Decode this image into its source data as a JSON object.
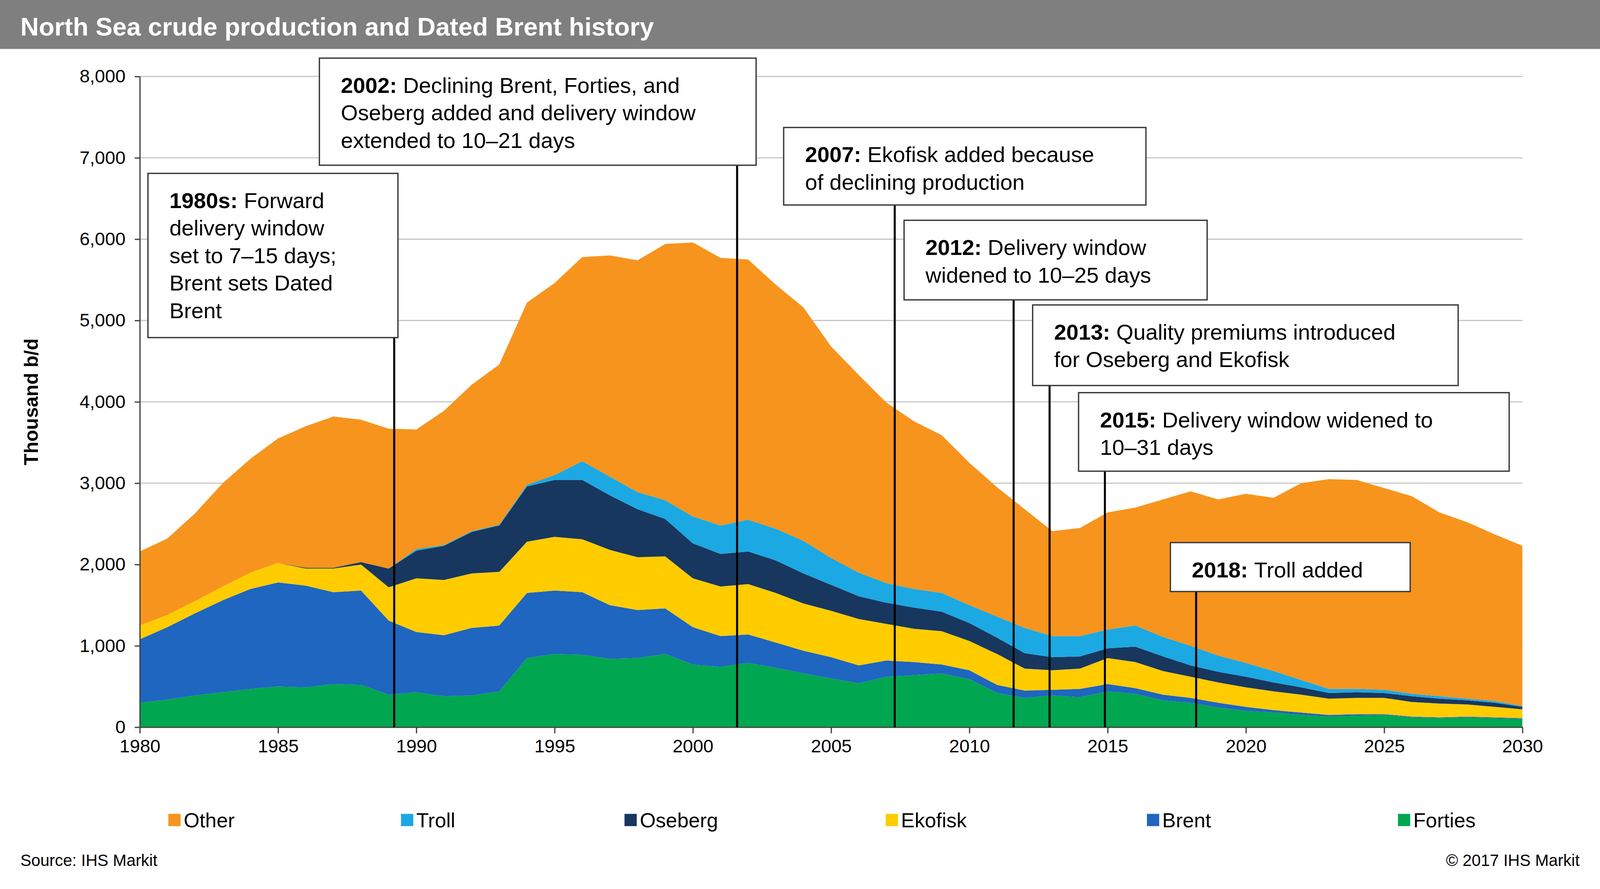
{
  "chart_data": {
    "type": "area",
    "stacked": true,
    "title": "North Sea crude production and Dated Brent history",
    "y_label": "Thousand b/d",
    "x": [
      1980,
      1981,
      1982,
      1983,
      1984,
      1985,
      1986,
      1987,
      1988,
      1989,
      1990,
      1991,
      1992,
      1993,
      1994,
      1995,
      1996,
      1997,
      1998,
      1999,
      2000,
      2001,
      2002,
      2003,
      2004,
      2005,
      2006,
      2007,
      2008,
      2009,
      2010,
      2011,
      2012,
      2013,
      2014,
      2015,
      2016,
      2017,
      2018,
      2019,
      2020,
      2021,
      2022,
      2023,
      2024,
      2025,
      2026,
      2027,
      2028,
      2029,
      2030
    ],
    "xlim": [
      1980,
      2030
    ],
    "xticks": [
      1980,
      1985,
      1990,
      1995,
      2000,
      2005,
      2010,
      2015,
      2020,
      2025,
      2030
    ],
    "ylim": [
      0,
      8000
    ],
    "yticks": [
      0,
      {
        "value": 1000,
        "label": "1,000"
      },
      {
        "value": 2000,
        "label": "2,000"
      },
      {
        "value": 3000,
        "label": "3,000"
      },
      {
        "value": 4000,
        "label": "4,000"
      },
      {
        "value": 5000,
        "label": "5,000"
      },
      {
        "value": 6000,
        "label": "6,000"
      },
      {
        "value": 7000,
        "label": "7,000"
      },
      {
        "value": 8000,
        "label": "8,000"
      }
    ],
    "grid": true,
    "legend": "bottom",
    "series": [
      {
        "name": "Other",
        "color": "#f7941d",
        "values": [
          910,
          940,
          1080,
          1270,
          1400,
          1530,
          1740,
          1860,
          1750,
          1720,
          1470,
          1650,
          1800,
          1970,
          2240,
          2360,
          2510,
          2720,
          2850,
          3150,
          3370,
          3290,
          3200,
          3000,
          2870,
          2600,
          2430,
          2220,
          2060,
          1940,
          1750,
          1590,
          1460,
          1290,
          1330,
          1440,
          1450,
          1690,
          1900,
          1920,
          2080,
          2130,
          2420,
          2580,
          2570,
          2480,
          2430,
          2260,
          2170,
          2050,
          1970
        ]
      },
      {
        "name": "Troll",
        "color": "#1ca8e3",
        "values": [
          0,
          0,
          0,
          0,
          0,
          0,
          0,
          0,
          0,
          0,
          20,
          10,
          10,
          10,
          20,
          60,
          230,
          230,
          210,
          230,
          330,
          350,
          390,
          390,
          400,
          330,
          290,
          240,
          230,
          230,
          220,
          260,
          310,
          260,
          250,
          230,
          260,
          240,
          240,
          200,
          170,
          140,
          90,
          50,
          40,
          40,
          30,
          30,
          20,
          20,
          10
        ]
      },
      {
        "name": "Oseberg",
        "color": "#17375e",
        "values": [
          0,
          0,
          0,
          0,
          0,
          0,
          10,
          10,
          30,
          230,
          340,
          420,
          510,
          570,
          680,
          700,
          730,
          670,
          590,
          460,
          430,
          400,
          400,
          400,
          370,
          320,
          280,
          260,
          260,
          240,
          220,
          200,
          190,
          160,
          150,
          120,
          190,
          180,
          140,
          130,
          130,
          110,
          90,
          70,
          70,
          60,
          70,
          60,
          50,
          50,
          30
        ]
      },
      {
        "name": "Ekofisk",
        "color": "#ffcc00",
        "values": [
          170,
          150,
          150,
          170,
          200,
          240,
          210,
          290,
          320,
          410,
          660,
          680,
          670,
          660,
          630,
          660,
          650,
          680,
          650,
          640,
          600,
          610,
          620,
          610,
          580,
          570,
          570,
          450,
          410,
          410,
          360,
          380,
          270,
          240,
          250,
          320,
          320,
          290,
          260,
          250,
          240,
          230,
          220,
          200,
          200,
          200,
          180,
          170,
          150,
          130,
          110
        ]
      },
      {
        "name": "Brent",
        "color": "#1e66bf",
        "values": [
          780,
          890,
          1010,
          1130,
          1230,
          1280,
          1250,
          1130,
          1160,
          910,
          740,
          750,
          830,
          810,
          800,
          780,
          770,
          660,
          590,
          560,
          460,
          380,
          350,
          310,
          280,
          260,
          220,
          200,
          160,
          110,
          110,
          100,
          90,
          70,
          100,
          90,
          70,
          70,
          60,
          60,
          50,
          30,
          30,
          20,
          20,
          10,
          10,
          10,
          10,
          10,
          10
        ]
      },
      {
        "name": "Forties",
        "color": "#00a650",
        "values": [
          300,
          340,
          390,
          430,
          470,
          500,
          490,
          530,
          520,
          400,
          430,
          380,
          390,
          440,
          850,
          900,
          890,
          840,
          850,
          900,
          770,
          740,
          790,
          730,
          660,
          600,
          540,
          620,
          640,
          660,
          590,
          420,
          360,
          390,
          370,
          440,
          410,
          330,
          300,
          240,
          200,
          180,
          150,
          130,
          140,
          150,
          120,
          110,
          120,
          110,
          100
        ]
      }
    ],
    "annotations": [
      {
        "label": "1980s:",
        "lines": [
          "Forward",
          "delivery window",
          "set to 7–15 days;",
          "Brent sets Dated",
          "Brent"
        ],
        "x": 1989.2
      },
      {
        "label": "2002:",
        "lines": [
          "Declining Brent, Forties, and",
          "Oseberg added and delivery window",
          "extended to 10–21 days"
        ],
        "x": 2001.6
      },
      {
        "label": "2007:",
        "lines": [
          "Ekofisk added because",
          "of declining production"
        ],
        "x": 2007.3
      },
      {
        "label": "2012:",
        "lines": [
          "Delivery window",
          "widened to 10–25 days"
        ],
        "x": 2011.6
      },
      {
        "label": "2013:",
        "lines": [
          "Quality premiums introduced",
          "for Oseberg and Ekofisk"
        ],
        "x": 2012.9
      },
      {
        "label": "2015:",
        "lines": [
          "Delivery window widened to",
          "10–31 days"
        ],
        "x": 2014.9
      },
      {
        "label": "2018:",
        "lines": [
          "Troll added"
        ],
        "x": 2018.2
      }
    ],
    "source": "Source: IHS Markit",
    "copyright": "© 2017 IHS Markit"
  }
}
